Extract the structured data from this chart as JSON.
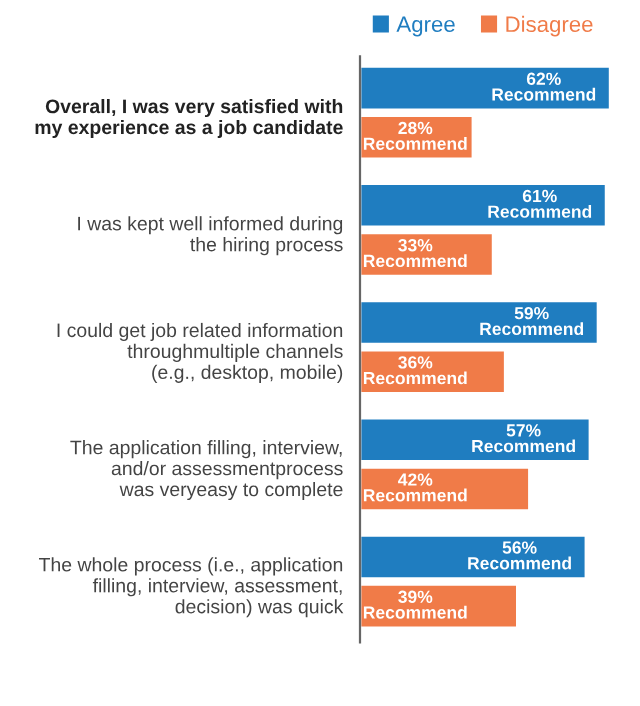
{
  "chart_data": {
    "type": "bar",
    "orientation": "horizontal",
    "categories": [
      "Overall, I was very satisfied with\nmy experience as a job candidate",
      "I was kept well informed during\nthe hiring process",
      "I could get job related information\nthroughmultiple channels\n(e.g., desktop, mobile)",
      "The application filling, interview,\nand/or assessmentprocess\nwas veryeasy to complete",
      "The whole process (i.e., application\nfilling, interview, assessment,\ndecision) was quick"
    ],
    "series": [
      {
        "name": "Agree",
        "color": "#1f7dc0",
        "values": [
          62,
          61,
          59,
          57,
          56
        ],
        "value_labels": [
          "62%\nRecommend",
          "61%\nRecommend",
          "59%\nRecommend",
          "57%\nRecommend",
          "56%\nRecommend"
        ]
      },
      {
        "name": "Disagree",
        "color": "#f07b48",
        "values": [
          28,
          33,
          36,
          42,
          39
        ],
        "value_labels": [
          "28%\nRecommend",
          "33%\nRecommend",
          "36%\nRecommend",
          "42%\nRecommend",
          "39%\nRecommend"
        ]
      }
    ],
    "tick_labels": "y",
    "legend": "top",
    "grid": false
  }
}
